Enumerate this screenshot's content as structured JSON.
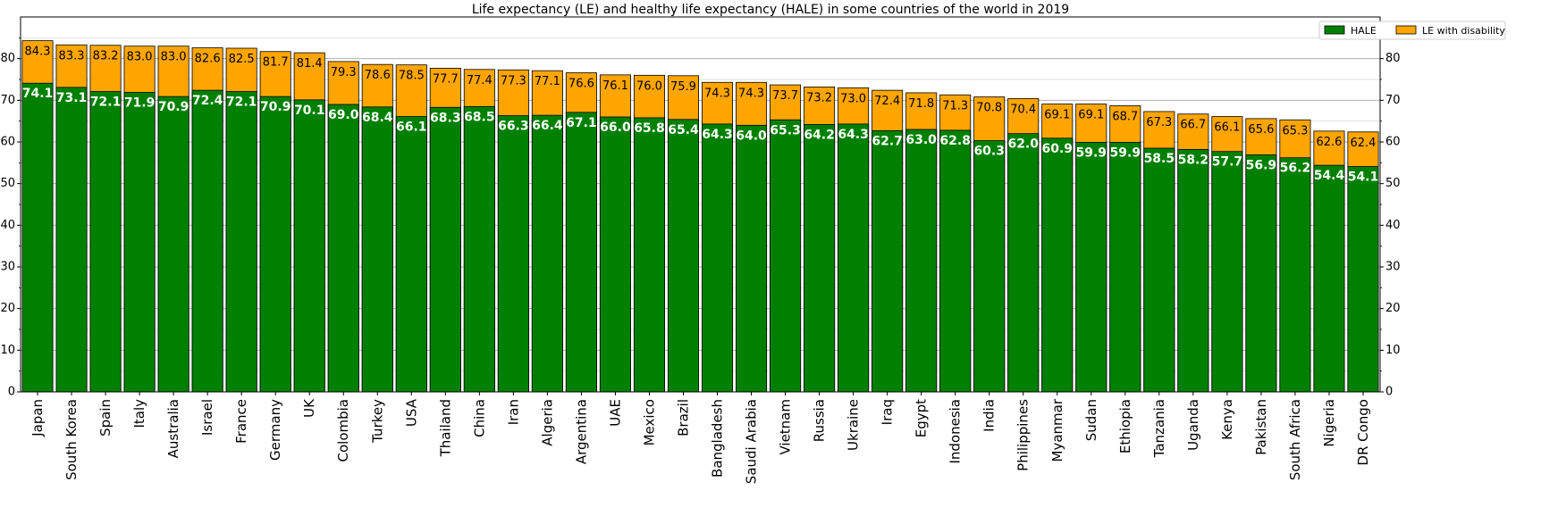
{
  "chart_data": {
    "type": "bar",
    "title": "Life expectancy (LE) and healthy life expectancy (HALE) in some countries of the world in 2019",
    "xlabel": "",
    "ylabel": "",
    "ylim": [
      0,
      90
    ],
    "yticks": [
      0,
      10,
      20,
      30,
      40,
      50,
      60,
      70,
      80
    ],
    "grid": true,
    "legend_position": "top-right",
    "categories": [
      "Japan",
      "South Korea",
      "Spain",
      "Italy",
      "Australia",
      "Israel",
      "France",
      "Germany",
      "UK",
      "Colombia",
      "Turkey",
      "USA",
      "Thailand",
      "China",
      "Iran",
      "Algeria",
      "Argentina",
      "UAE",
      "Mexico",
      "Brazil",
      "Bangladesh",
      "Saudi Arabia",
      "Vietnam",
      "Russia",
      "Ukraine",
      "Iraq",
      "Egypt",
      "Indonesia",
      "India",
      "Philippines",
      "Myanmar",
      "Sudan",
      "Ethiopia",
      "Tanzania",
      "Uganda",
      "Kenya",
      "Pakistan",
      "South Africa",
      "Nigeria",
      "DR Congo"
    ],
    "series": [
      {
        "name": "HALE",
        "color": "#008000",
        "values": [
          74.1,
          73.1,
          72.1,
          71.9,
          70.9,
          72.4,
          72.1,
          70.9,
          70.1,
          69.0,
          68.4,
          66.1,
          68.3,
          68.5,
          66.3,
          66.4,
          67.1,
          66.0,
          65.8,
          65.4,
          64.3,
          64.0,
          65.3,
          64.2,
          64.3,
          62.7,
          63.0,
          62.8,
          60.3,
          62.0,
          60.9,
          59.9,
          59.9,
          58.5,
          58.2,
          57.7,
          56.9,
          56.2,
          54.4,
          54.1
        ]
      },
      {
        "name": "LE with disability",
        "color": "#FFA500",
        "values": [
          84.3,
          83.3,
          83.2,
          83.0,
          83.0,
          82.6,
          82.5,
          81.7,
          81.4,
          79.3,
          78.6,
          78.5,
          77.7,
          77.4,
          77.3,
          77.1,
          76.6,
          76.1,
          76.0,
          75.9,
          74.3,
          74.3,
          73.7,
          73.2,
          73.0,
          72.4,
          71.8,
          71.3,
          70.8,
          70.4,
          69.1,
          69.1,
          68.7,
          67.3,
          66.7,
          66.1,
          65.6,
          65.3,
          62.6,
          62.4
        ]
      }
    ]
  }
}
